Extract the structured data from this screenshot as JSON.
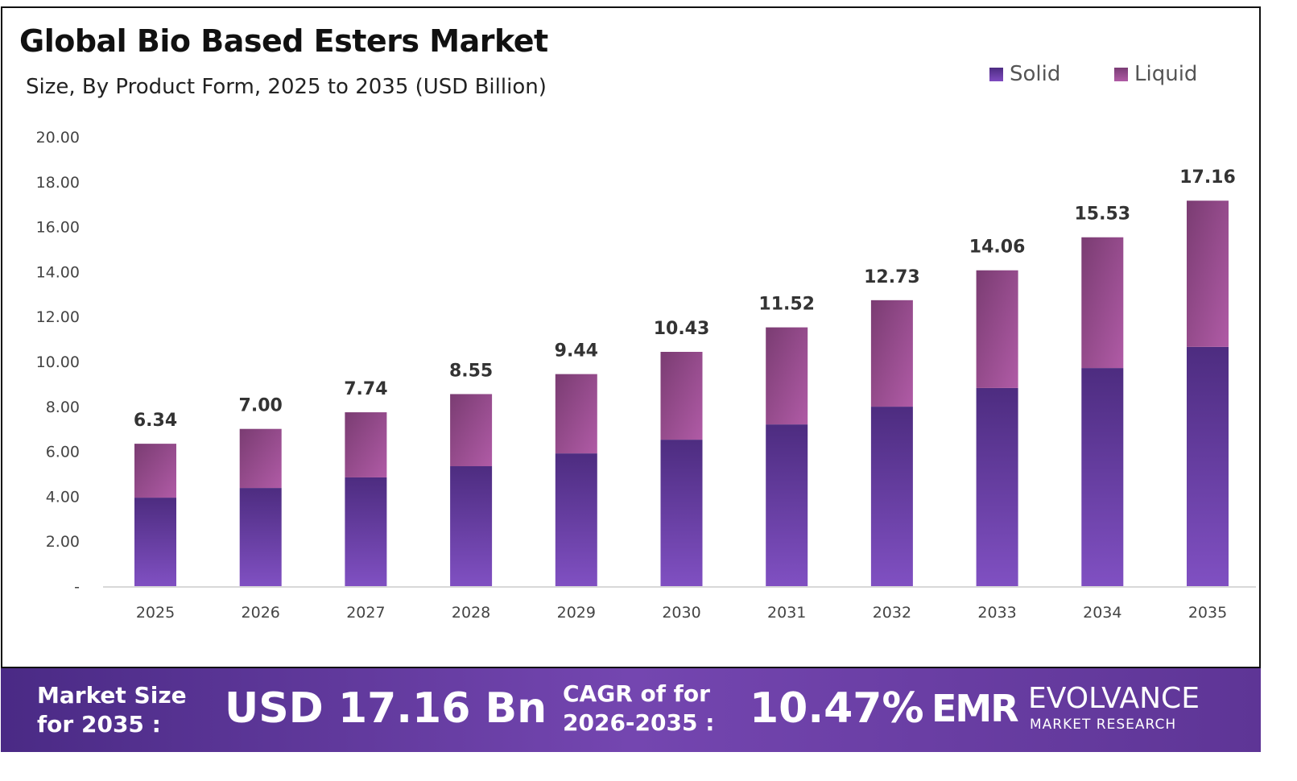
{
  "chart_data": {
    "type": "bar",
    "stacked": true,
    "title": "Global Bio Based Esters Market",
    "subtitle": "Size, By Product Form, 2025 to 2035 (USD Billion)",
    "categories": [
      "2025",
      "2026",
      "2027",
      "2028",
      "2029",
      "2030",
      "2031",
      "2032",
      "2033",
      "2034",
      "2035"
    ],
    "series": [
      {
        "name": "Solid",
        "color": "#6a3fa8",
        "values": [
          3.94,
          4.37,
          4.84,
          5.34,
          5.91,
          6.52,
          7.2,
          7.99,
          8.82,
          9.71,
          10.65
        ]
      },
      {
        "name": "Liquid",
        "color": "#a4559a",
        "values": [
          2.4,
          2.63,
          2.9,
          3.21,
          3.53,
          3.91,
          4.32,
          4.74,
          5.24,
          5.82,
          6.51
        ]
      }
    ],
    "totals": [
      "6.34",
      "7.00",
      "7.74",
      "8.55",
      "9.44",
      "10.43",
      "11.52",
      "12.73",
      "14.06",
      "15.53",
      "17.16"
    ],
    "yticks": [
      "-",
      "2.00",
      "4.00",
      "6.00",
      "8.00",
      "10.00",
      "12.00",
      "14.00",
      "16.00",
      "18.00",
      "20.00"
    ],
    "ylim": [
      0,
      20
    ],
    "grid": false,
    "legend": "top-right"
  },
  "footer": {
    "market_size_label_1": "Market Size",
    "market_size_label_2": "for 2035 :",
    "market_size_value": "USD 17.16 Bn",
    "cagr_label_1": "CAGR of for",
    "cagr_label_2": "2026-2035 :",
    "cagr_value": "10.47%",
    "brand_name": "EVOLVANCE",
    "brand_sub": "MARKET RESEARCH",
    "logo_text": "EMR"
  }
}
